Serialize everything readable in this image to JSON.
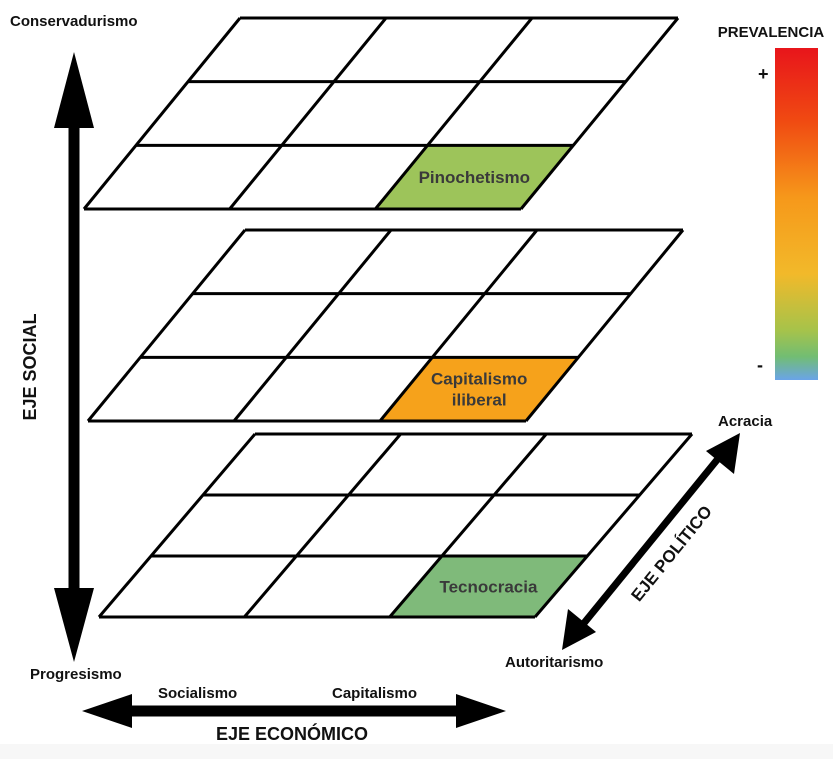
{
  "vertical_axis": {
    "title": "EJE SOCIAL",
    "top_label": "Conservadurismo",
    "bottom_label": "Progresismo"
  },
  "horizontal_axis": {
    "title": "EJE ECONÓMICO",
    "left_label": "Socialismo",
    "right_label": "Capitalismo"
  },
  "diagonal_axis": {
    "title": "EJE POLÍTICO",
    "top_label": "Acracia",
    "bottom_label": "Autoritarismo"
  },
  "legend": {
    "title": "PREVALENCIA",
    "plus": "+",
    "minus": "-",
    "colors": [
      "#e8151b",
      "#f26a10",
      "#f7a31b",
      "#c8c93c",
      "#7fc45a",
      "#6aa4e8"
    ]
  },
  "planes": [
    {
      "name": "top",
      "highlight": {
        "label_lines": [
          "Pinochetismo"
        ],
        "color": "#9dc45a"
      }
    },
    {
      "name": "middle",
      "highlight": {
        "label_lines": [
          "Capitalismo",
          "iliberal"
        ],
        "color": "#f6a21b"
      }
    },
    {
      "name": "bottom",
      "highlight": {
        "label_lines": [
          "Tecnocracia"
        ],
        "color": "#7fba7a"
      }
    }
  ]
}
